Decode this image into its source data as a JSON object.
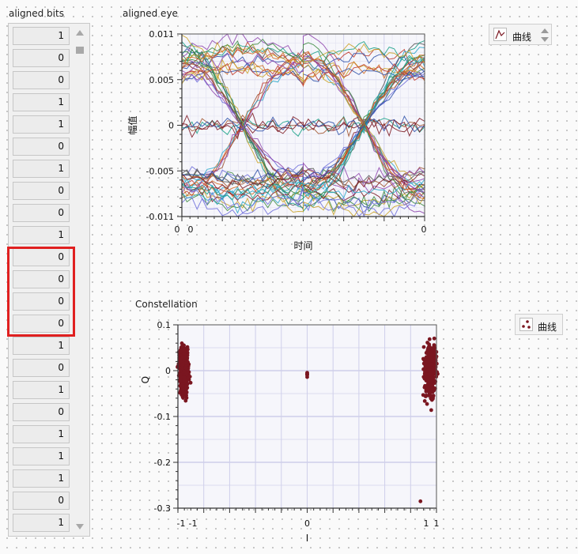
{
  "bits_panel": {
    "label": "aligned bits",
    "bits": [
      "1",
      "0",
      "0",
      "1",
      "1",
      "0",
      "1",
      "0",
      "0",
      "1",
      "0",
      "0",
      "0",
      "0",
      "1",
      "0",
      "1",
      "0",
      "1",
      "1",
      "1",
      "0",
      "1"
    ]
  },
  "eye_panel": {
    "label": "aligned eye",
    "legend_label": "曲线"
  },
  "constellation_panel": {
    "label": "Constellation",
    "legend_label": "曲线"
  },
  "colors": {
    "plot_bg": "#f6f6fb",
    "grid": "#d0d0ea",
    "highlight": "#e02020",
    "marker": "#7a1620"
  },
  "chart_data": [
    {
      "type": "line",
      "title": "",
      "xlabel": "时间",
      "ylabel": "幅值",
      "ylim": [
        -0.011,
        0.011
      ],
      "y_ticks": [
        "0.011",
        "0.005",
        "0",
        "-0.005",
        "-0.011"
      ],
      "x_ticks": [
        "0",
        "0",
        "0"
      ],
      "levels": [
        -0.007,
        0,
        0.007
      ],
      "eye_count": 2,
      "grid": true
    },
    {
      "type": "scatter",
      "title": "",
      "xlabel": "I",
      "ylabel": "Q",
      "ylim": [
        -0.3,
        0.1
      ],
      "x_ticks": [
        "-1",
        "-1",
        "0",
        "1",
        "1"
      ],
      "y_ticks": [
        "0.1",
        "0",
        "-0.1",
        "-0.2",
        "-0.3"
      ],
      "clusters": [
        {
          "x": -1,
          "y": 0,
          "spread_x": 0.03,
          "spread_y": 0.055
        },
        {
          "x": 0,
          "y": -0.01,
          "spread_x": 0.0,
          "spread_y": 0.01
        },
        {
          "x": 1,
          "y": 0,
          "spread_x": 0.04,
          "spread_y": 0.06
        }
      ],
      "outliers": [
        {
          "x": 0.92,
          "y": -0.285
        }
      ],
      "grid": true
    }
  ]
}
